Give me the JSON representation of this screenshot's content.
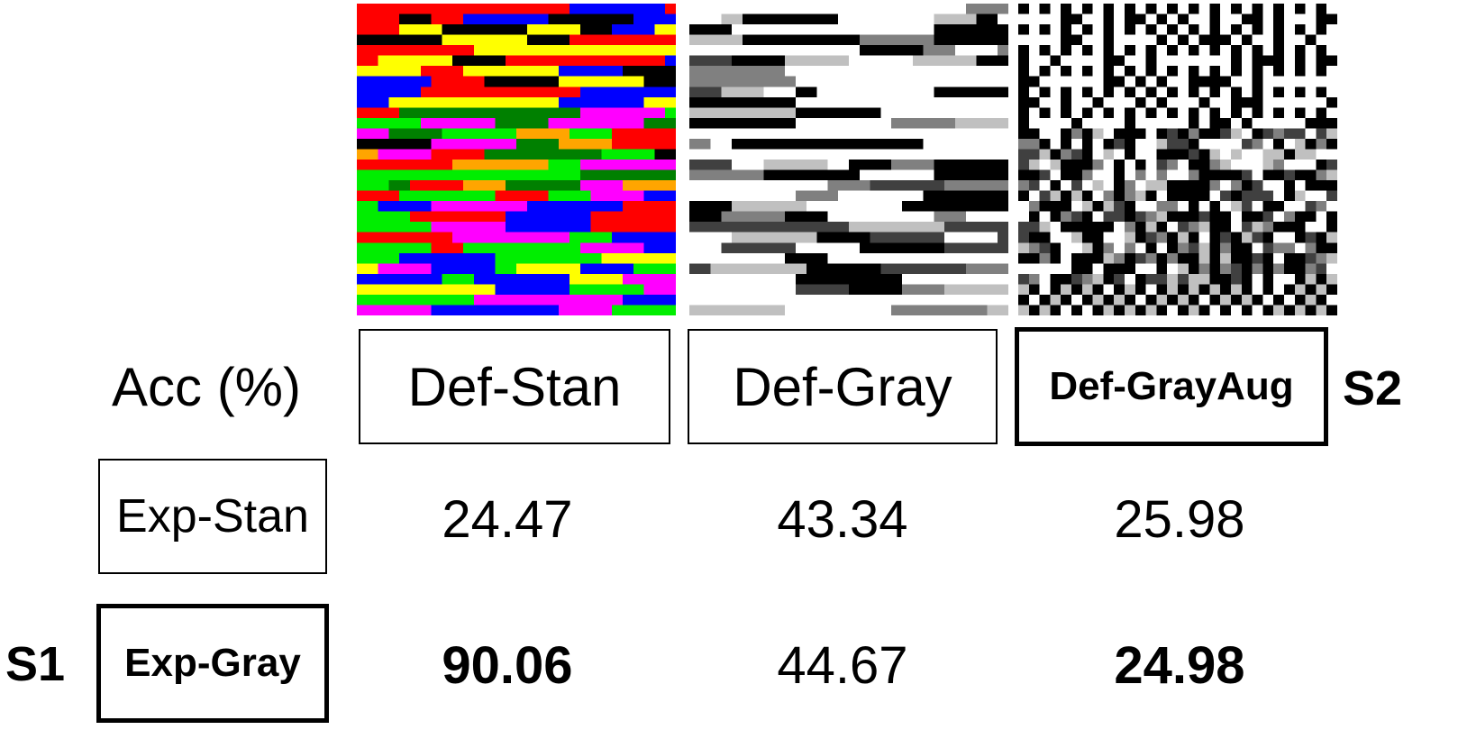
{
  "corner_label": "Acc (%)",
  "columns": [
    {
      "id": "def-stan",
      "label": "Def-Stan",
      "emphasis": false
    },
    {
      "id": "def-gray",
      "label": "Def-Gray",
      "emphasis": false
    },
    {
      "id": "def-grayaug",
      "label": "Def-GrayAug",
      "emphasis": true
    }
  ],
  "rows": [
    {
      "id": "exp-stan",
      "label": "Exp-Stan",
      "emphasis": false,
      "values": [
        "24.47",
        "43.34",
        "25.98"
      ],
      "bold": [
        false,
        false,
        false
      ]
    },
    {
      "id": "exp-gray",
      "label": "Exp-Gray",
      "emphasis": true,
      "values": [
        "90.06",
        "44.67",
        "24.98"
      ],
      "bold": [
        true,
        false,
        true
      ]
    }
  ],
  "tags": {
    "column_tag": "S2",
    "row_tag": "S1"
  },
  "images": [
    {
      "style": "color",
      "palette": [
        "#0000ff",
        "#ffff00",
        "#ff0000",
        "#ff00ff",
        "#00ee00",
        "#000000",
        "#ffa500",
        "#00ffff",
        "#008000",
        "#ffffff"
      ]
    },
    {
      "style": "grayscale-stripes"
    },
    {
      "style": "grayscale-checker"
    }
  ]
}
